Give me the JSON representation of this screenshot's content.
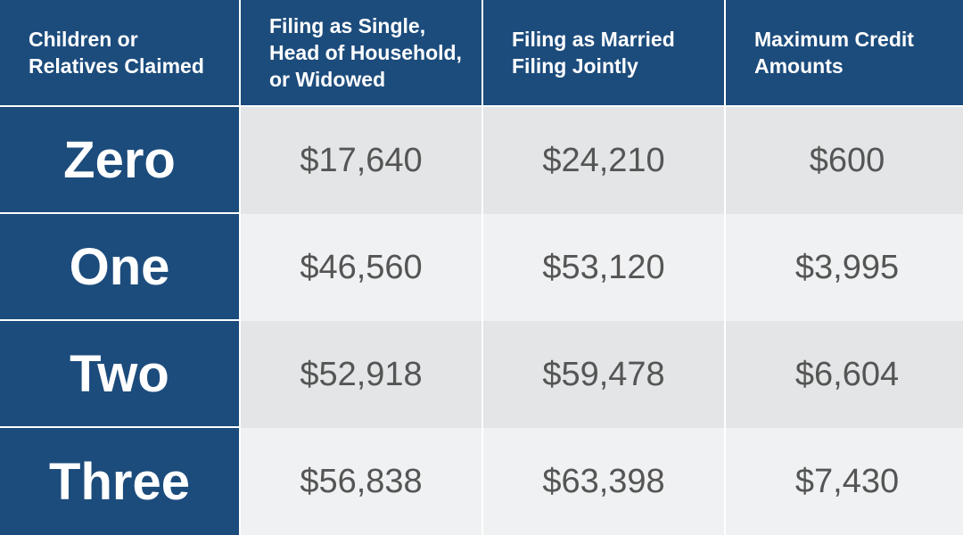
{
  "headers": [
    "Children or\nRelatives Claimed",
    "Filing as Single,\nHead of Household,\nor Widowed",
    "Filing as Married\nFiling Jointly",
    "Maximum Credit\nAmounts"
  ],
  "rows": [
    {
      "label": "Zero",
      "single": "$17,640",
      "married": "$24,210",
      "max_credit": "$600"
    },
    {
      "label": "One",
      "single": "$46,560",
      "married": "$53,120",
      "max_credit": "$3,995"
    },
    {
      "label": "Two",
      "single": "$52,918",
      "married": "$59,478",
      "max_credit": "$6,604"
    },
    {
      "label": "Three",
      "single": "$56,838",
      "married": "$63,398",
      "max_credit": "$7,430"
    }
  ],
  "colors": {
    "header_bg": "#1c4c7c",
    "row_odd_bg": "#e3e5e6",
    "row_even_bg": "#f0f1f2",
    "value_text": "#555555"
  }
}
